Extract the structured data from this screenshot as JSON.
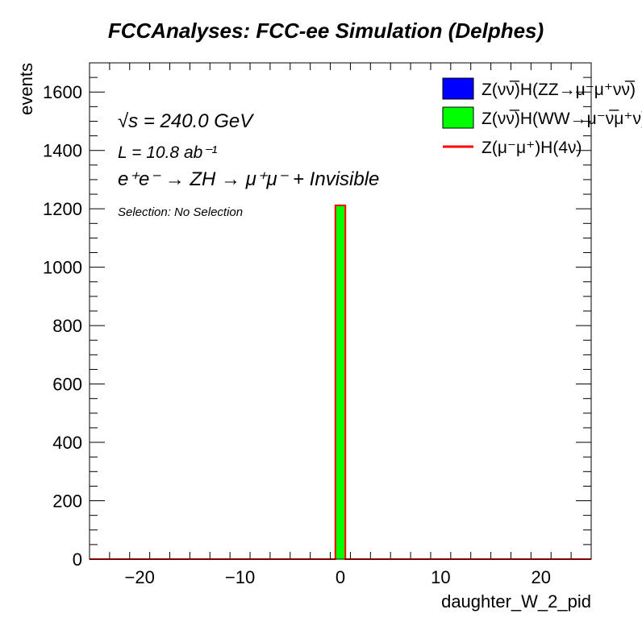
{
  "chart_data": {
    "type": "bar",
    "title": "FCCAnalyses: FCC-ee Simulation (Delphes)",
    "xlabel": "daughter_W_2_pid",
    "ylabel": "events",
    "xlim": [
      -25,
      25
    ],
    "ylim": [
      0,
      1700
    ],
    "x_ticks": [
      -20,
      -10,
      0,
      10,
      20
    ],
    "x_tick_labels": [
      "−20",
      "−10",
      "0",
      "10",
      "20"
    ],
    "y_ticks": [
      0,
      200,
      400,
      600,
      800,
      1000,
      1200,
      1400,
      1600
    ],
    "bin_width": 1,
    "series": [
      {
        "name": "Z(νν̅)H(ZZ→μ⁻μ⁺νν̅)",
        "color": "#0000ff",
        "style": "fill",
        "bins": []
      },
      {
        "name": "Z(νν̅)H(WW→μ⁻ν̅μ⁺ν)",
        "color": "#00ff00",
        "style": "fill",
        "bins": [
          {
            "x": 0,
            "y": 1212
          }
        ]
      },
      {
        "name": "Z(μ⁻μ⁺)H(4ν)",
        "color": "#ff0000",
        "style": "line",
        "bins": []
      }
    ],
    "legend_placement": "top-right",
    "grid": false,
    "annotations": {
      "sqrt_s": "√s = 240.0 GeV",
      "lumi": "L = 10.8 ab⁻¹",
      "process": "e⁺e⁻ → ZH → μ⁺μ⁻ + Invisible",
      "selection": "Selection: No Selection"
    }
  }
}
